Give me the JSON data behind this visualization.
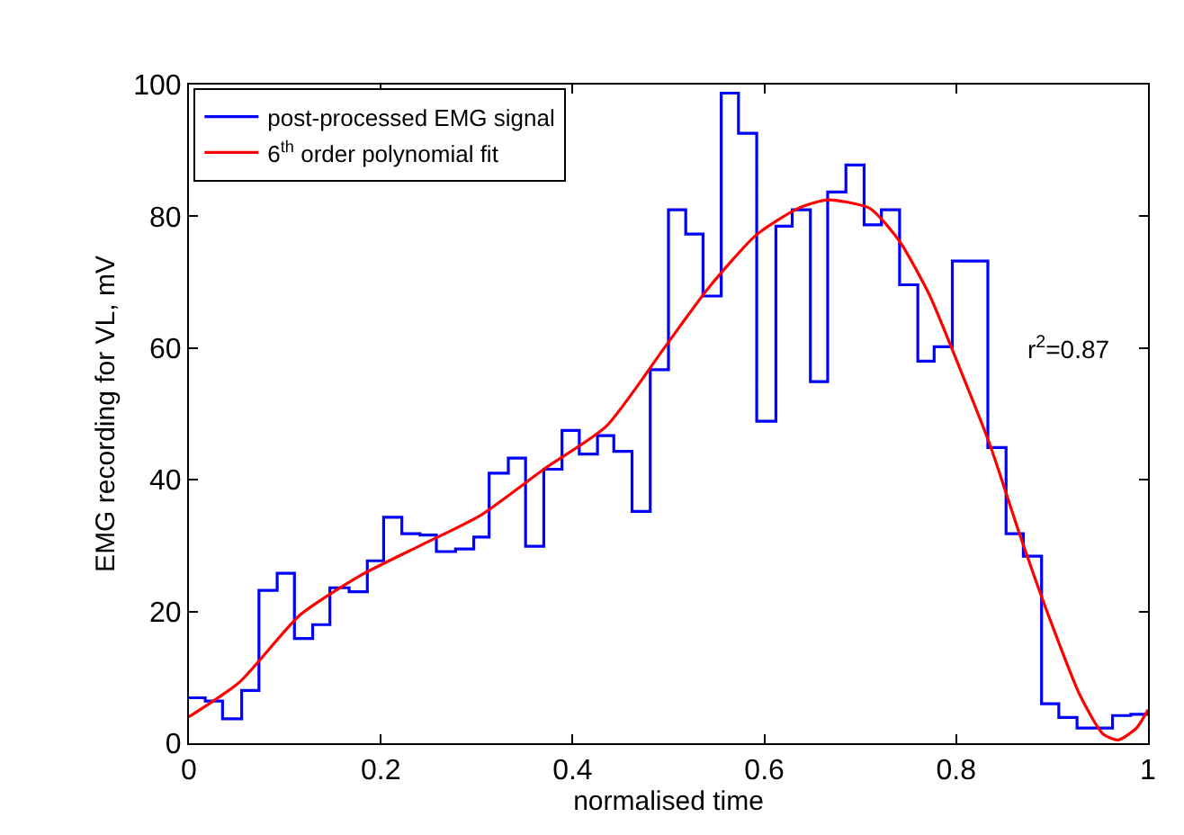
{
  "chart_data": {
    "type": "line",
    "xlabel": "normalised time",
    "ylabel": "EMG recording for VL, mV",
    "xlim": [
      0,
      1
    ],
    "xticks": [
      0,
      0.2,
      0.4,
      0.6,
      0.8,
      1
    ],
    "ylim": [
      0,
      100
    ],
    "yticks": [
      0,
      20,
      40,
      60,
      80,
      100
    ],
    "grid": false,
    "legend": "top left",
    "line_style": "solid",
    "marker": "none",
    "annotations": [
      "r$^{2}$=0.87"
    ],
    "series": [
      {
        "name": "post-processed EMG signal",
        "type": "step",
        "color": "#0000ff",
        "x": [
          0,
          0.017,
          0.035,
          0.055,
          0.073,
          0.092,
          0.11,
          0.129,
          0.147,
          0.167,
          0.186,
          0.203,
          0.222,
          0.241,
          0.258,
          0.278,
          0.297,
          0.313,
          0.333,
          0.351,
          0.37,
          0.389,
          0.407,
          0.426,
          0.443,
          0.462,
          0.481,
          0.5,
          0.518,
          0.536,
          0.555,
          0.573,
          0.592,
          0.612,
          0.629,
          0.648,
          0.666,
          0.685,
          0.704,
          0.722,
          0.741,
          0.76,
          0.777,
          0.796,
          0.815,
          0.833,
          0.852,
          0.87,
          0.889,
          0.907,
          0.926,
          0.945,
          0.963,
          0.982,
          1.0
        ],
        "values": [
          6.9,
          6.4,
          3.7,
          8.0,
          23.2,
          25.8,
          15.9,
          18.0,
          23.6,
          23.0,
          27.7,
          34.3,
          31.8,
          31.6,
          29.1,
          29.5,
          31.3,
          41.0,
          43.3,
          29.9,
          41.6,
          47.5,
          43.9,
          46.7,
          44.3,
          35.2,
          56.7,
          81.0,
          77.3,
          67.9,
          98.7,
          92.6,
          48.9,
          78.5,
          81.0,
          54.9,
          83.7,
          87.8,
          78.7,
          81.0,
          69.6,
          58.0,
          60.2,
          73.2,
          73.2,
          44.9,
          31.8,
          28.4,
          6.0,
          3.9,
          2.3,
          2.3,
          4.2,
          4.4,
          4.4
        ]
      },
      {
        "name": "6$^{th}$ order polynomial fit",
        "color": "#ff0000",
        "x": [
          0,
          0.053,
          0.116,
          0.178,
          0.241,
          0.303,
          0.372,
          0.435,
          0.497,
          0.541,
          0.591,
          0.635,
          0.666,
          0.71,
          0.741,
          0.772,
          0.803,
          0.835,
          0.866,
          0.897,
          0.929,
          0.953,
          0.969,
          0.988,
          1.0
        ],
        "values": [
          4.0,
          9.3,
          19.5,
          25.4,
          30.0,
          34.5,
          41.8,
          48.1,
          60.3,
          69.0,
          77.1,
          81.2,
          82.5,
          81.2,
          76.2,
          68.1,
          57.2,
          45.4,
          31.8,
          19.1,
          7.3,
          1.4,
          0.5,
          2.3,
          5.1
        ]
      }
    ]
  }
}
